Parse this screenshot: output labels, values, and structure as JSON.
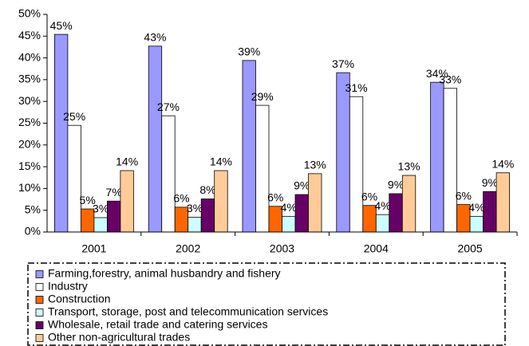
{
  "chart_data": {
    "type": "bar",
    "categories": [
      "2001",
      "2002",
      "2003",
      "2004",
      "2005"
    ],
    "series": [
      {
        "name": "Farming,forestry, animal husbandry and fishery",
        "color": "#9999ff",
        "values": [
          45.4,
          42.7,
          39.4,
          36.6,
          34.4
        ],
        "value_labels": [
          "45%",
          "43%",
          "39%",
          "37%",
          "34%"
        ]
      },
      {
        "name": "Industry",
        "color": "#ffffff",
        "values": [
          24.5,
          26.7,
          29.1,
          31.1,
          33.0
        ],
        "value_labels": [
          "25%",
          "27%",
          "29%",
          "31%",
          "33%"
        ]
      },
      {
        "name": "Construction",
        "color": "#ff6600",
        "values": [
          5.3,
          5.7,
          5.9,
          6.1,
          6.3
        ],
        "value_labels": [
          "5%",
          "6%",
          "6%",
          "6%",
          "6%"
        ]
      },
      {
        "name": "Transport, storage, post and telecommunication services",
        "color": "#ccffff",
        "values": [
          3.3,
          3.4,
          3.6,
          4.0,
          3.6
        ],
        "value_labels": [
          "3%",
          "3%",
          "4%",
          "4%",
          "4%"
        ]
      },
      {
        "name": "Wholesale, retail trade and catering services",
        "color": "#660066",
        "values": [
          7.1,
          7.6,
          8.6,
          8.8,
          9.3
        ],
        "value_labels": [
          "7%",
          "8%",
          "9%",
          "9%",
          "9%"
        ]
      },
      {
        "name": "Other non-agricultural trades",
        "color": "#ffcc99",
        "values": [
          14.1,
          14.1,
          13.4,
          13.0,
          13.6
        ],
        "value_labels": [
          "14%",
          "14%",
          "13%",
          "13%",
          "14%"
        ]
      }
    ],
    "ylim": [
      0,
      50
    ],
    "yticks": [
      {
        "value": 0,
        "label": "0%"
      },
      {
        "value": 5,
        "label": "5%"
      },
      {
        "value": 10,
        "label": "10%"
      },
      {
        "value": 15,
        "label": "15%"
      },
      {
        "value": 20,
        "label": "20%"
      },
      {
        "value": 25,
        "label": "25%"
      },
      {
        "value": 30,
        "label": "30%"
      },
      {
        "value": 35,
        "label": "35%"
      },
      {
        "value": 40,
        "label": "40%"
      },
      {
        "value": 45,
        "label": "45%"
      },
      {
        "value": 50,
        "label": "50%"
      }
    ],
    "grid": false,
    "legend": "bottom"
  }
}
